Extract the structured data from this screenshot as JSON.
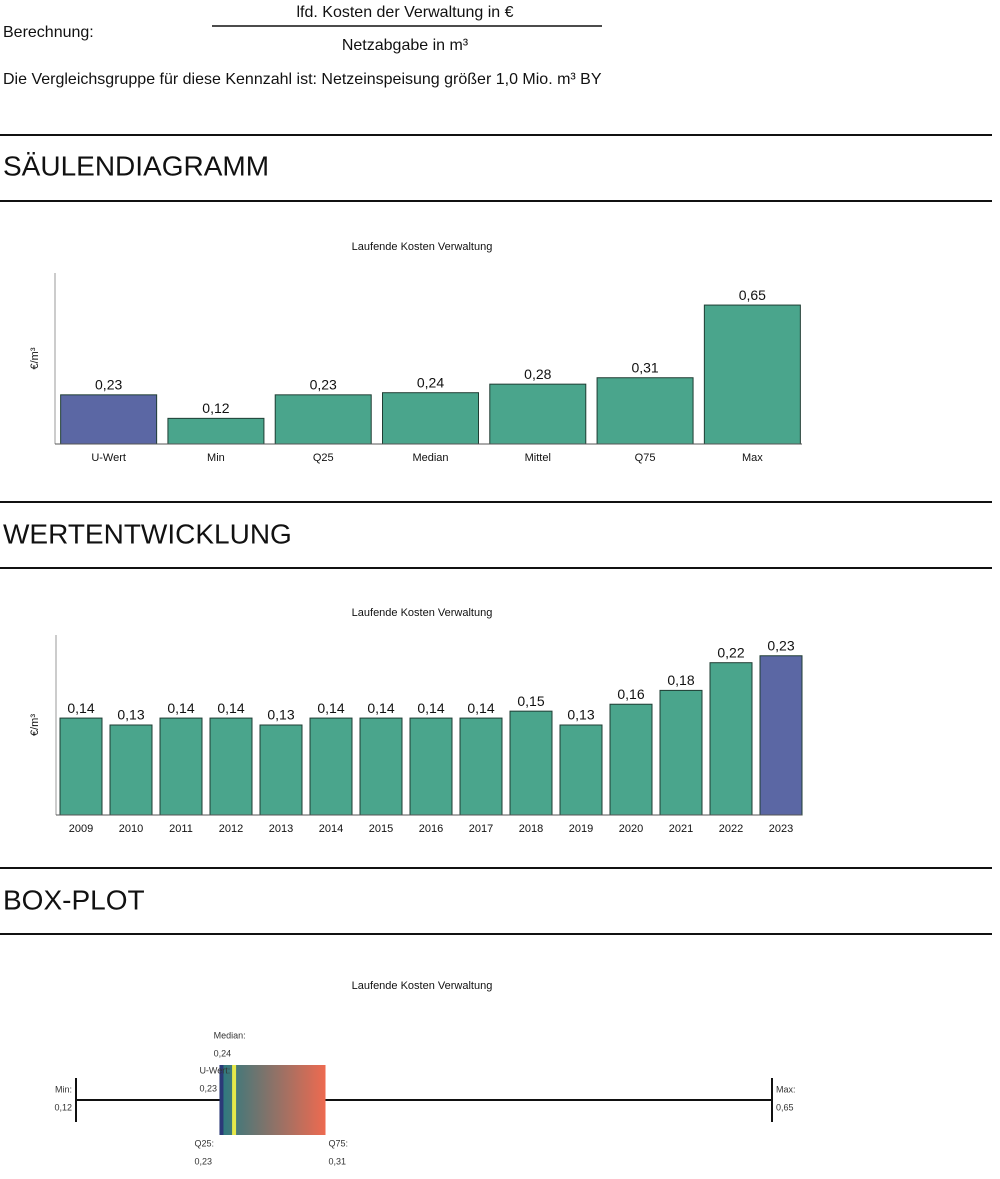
{
  "header": {
    "calc_label": "Berechnung:",
    "numerator": "lfd. Kosten der Verwaltung in €",
    "denominator": "Netzabgabe in m³",
    "comparison": "Die Vergleichsgruppe für diese Kennzahl ist:  Netzeinspeisung größer 1,0 Mio. m³ BY"
  },
  "sections": [
    {
      "heading": "SÄULENDIAGRAMM"
    },
    {
      "heading": "WERTENTWICKLUNG"
    },
    {
      "heading": "BOX-PLOT"
    }
  ],
  "chart_data": [
    {
      "type": "bar",
      "title": "Laufende Kosten Verwaltung",
      "y_label": "€/m³",
      "categories": [
        "U-Wert",
        "Min",
        "Q25",
        "Median",
        "Mittel",
        "Q75",
        "Max"
      ],
      "values": [
        0.23,
        0.12,
        0.23,
        0.24,
        0.28,
        0.31,
        0.65
      ],
      "value_labels": [
        "0,23",
        "0,12",
        "0,23",
        "0,24",
        "0,28",
        "0,31",
        "0,65"
      ],
      "colors": [
        "#5b67a4",
        "#4aa58c",
        "#4aa58c",
        "#4aa58c",
        "#4aa58c",
        "#4aa58c",
        "#4aa58c"
      ],
      "ylim": [
        0,
        0.8
      ]
    },
    {
      "type": "bar",
      "title": "Laufende Kosten Verwaltung",
      "y_label": "€/m³",
      "categories": [
        "2009",
        "2010",
        "2011",
        "2012",
        "2013",
        "2014",
        "2015",
        "2016",
        "2017",
        "2018",
        "2019",
        "2020",
        "2021",
        "2022",
        "2023"
      ],
      "values": [
        0.14,
        0.13,
        0.14,
        0.14,
        0.13,
        0.14,
        0.14,
        0.14,
        0.14,
        0.15,
        0.13,
        0.16,
        0.18,
        0.22,
        0.23
      ],
      "value_labels": [
        "0,14",
        "0,13",
        "0,14",
        "0,14",
        "0,13",
        "0,14",
        "0,14",
        "0,14",
        "0,14",
        "0,15",
        "0,13",
        "0,16",
        "0,18",
        "0,22",
        "0,23"
      ],
      "colors": [
        "#4aa58c",
        "#4aa58c",
        "#4aa58c",
        "#4aa58c",
        "#4aa58c",
        "#4aa58c",
        "#4aa58c",
        "#4aa58c",
        "#4aa58c",
        "#4aa58c",
        "#4aa58c",
        "#4aa58c",
        "#4aa58c",
        "#4aa58c",
        "#5b67a4"
      ],
      "ylim": [
        0,
        0.26
      ]
    },
    {
      "type": "box",
      "title": "Laufende Kosten Verwaltung",
      "categories": [
        "Min:",
        "Q25:",
        "Median:",
        "U-Wert:",
        "Q75:",
        "Max:"
      ],
      "values": [
        0.12,
        0.23,
        0.24,
        0.23,
        0.31,
        0.65
      ],
      "value_labels": [
        "0,12",
        "0,23",
        "0,24",
        "0,23",
        "0,31",
        "0,65"
      ],
      "box_colors": [
        "#2a7a80",
        "#ee6a50"
      ],
      "median_color": "#e6e84a",
      "marker_color": "#2b3a78",
      "xlim": [
        0.12,
        0.65
      ]
    }
  ]
}
